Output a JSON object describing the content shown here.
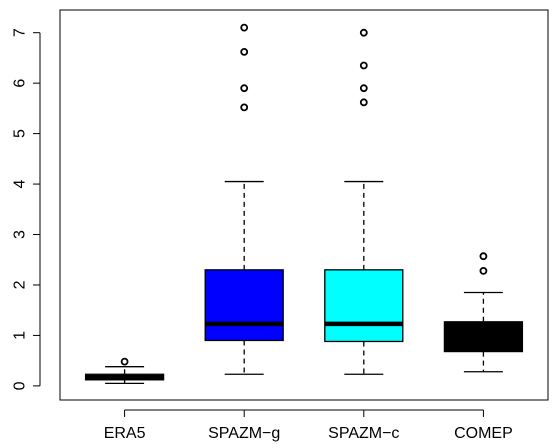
{
  "chart_data": {
    "type": "boxplot",
    "categories": [
      "ERA5",
      "SPAZM−g",
      "SPAZM−c",
      "COMEP"
    ],
    "ylim": [
      -0.28,
      7.45
    ],
    "y_ticks": [
      0,
      1,
      2,
      3,
      4,
      5,
      6,
      7
    ],
    "y_tick_labels": [
      "0",
      "1",
      "2",
      "3",
      "4",
      "5",
      "6",
      "7"
    ],
    "series": [
      {
        "name": "ERA5",
        "fill": "#C9893F",
        "whisker_low": 0.05,
        "q1": 0.12,
        "median": 0.17,
        "q3": 0.23,
        "whisker_high": 0.38,
        "outliers": [
          0.48
        ]
      },
      {
        "name": "SPAZM−g",
        "fill": "#0000FF",
        "whisker_low": 0.23,
        "q1": 0.9,
        "median": 1.23,
        "q3": 2.3,
        "whisker_high": 4.05,
        "outliers": [
          5.52,
          5.9,
          6.62,
          7.1
        ]
      },
      {
        "name": "SPAZM−c",
        "fill": "#00FFFF",
        "whisker_low": 0.23,
        "q1": 0.88,
        "median": 1.23,
        "q3": 2.3,
        "whisker_high": 4.05,
        "outliers": [
          5.62,
          5.9,
          6.35,
          7.0
        ]
      },
      {
        "name": "COMEP",
        "fill": "#000000",
        "whisker_low": 0.28,
        "q1": 0.68,
        "median": 0.95,
        "q3": 1.27,
        "whisker_high": 1.85,
        "outliers": [
          2.28,
          2.57
        ]
      }
    ]
  }
}
